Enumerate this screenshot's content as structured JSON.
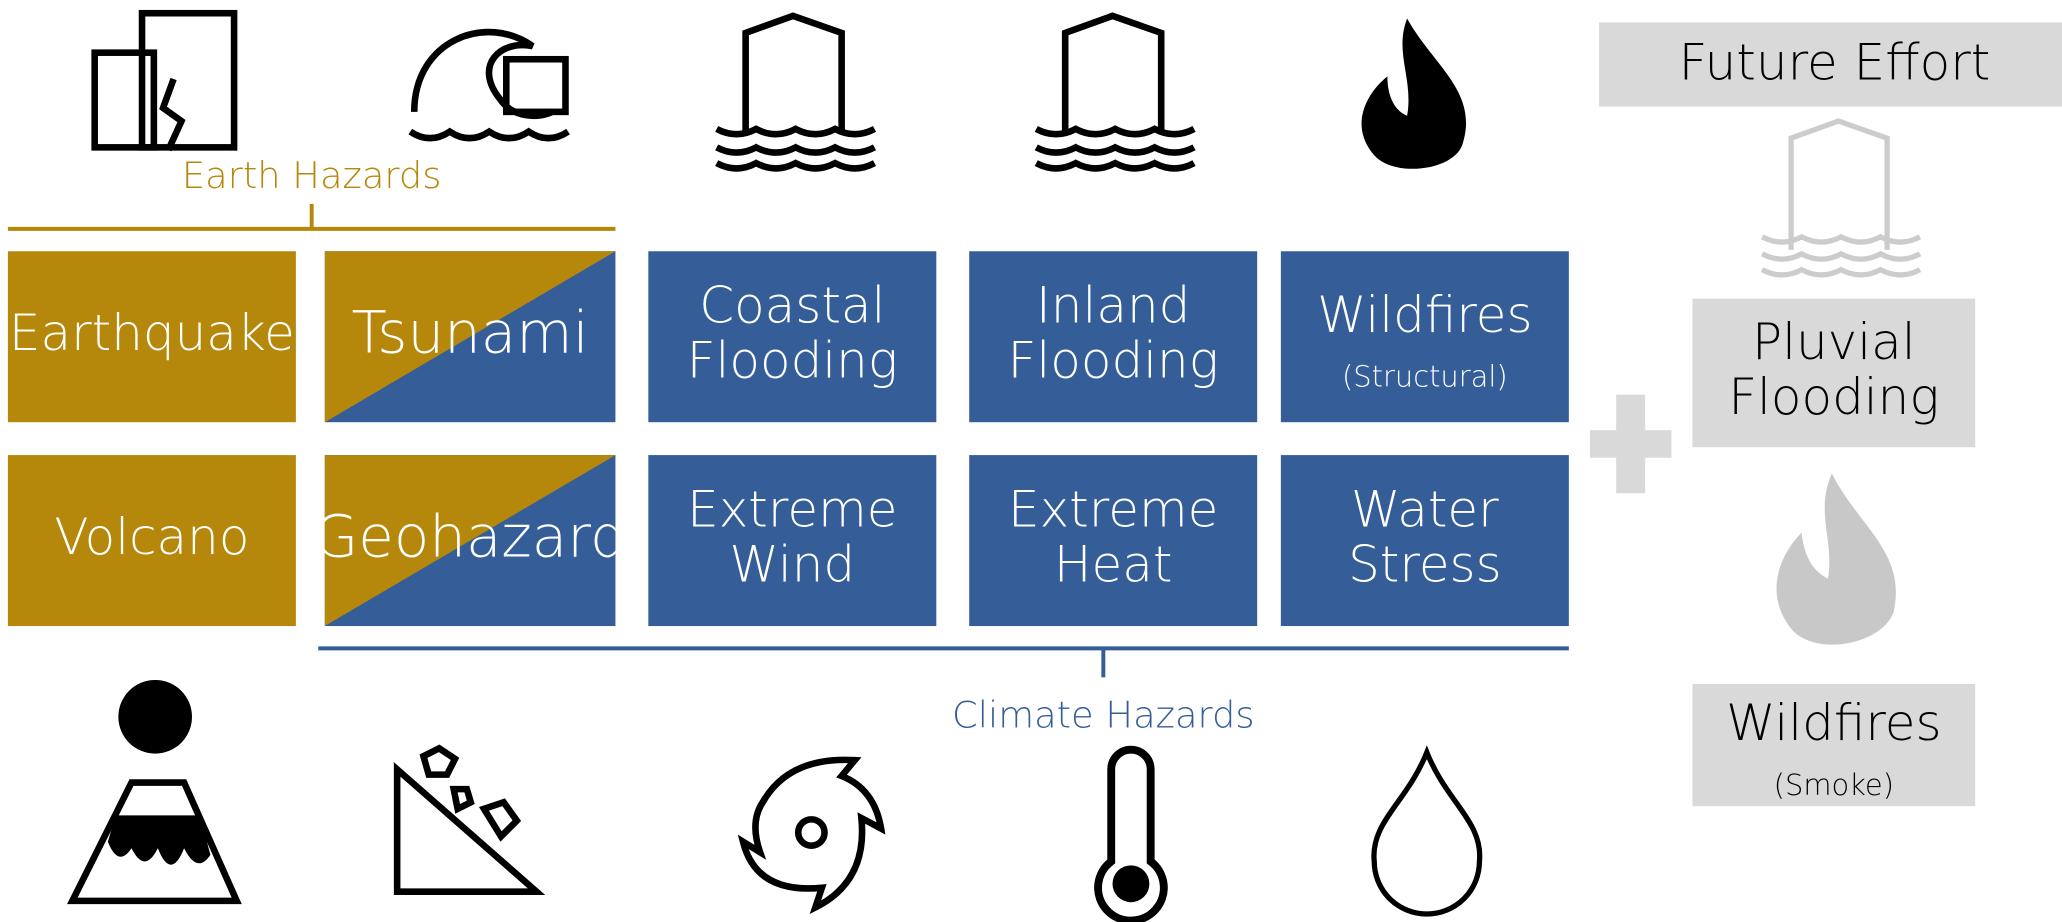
{
  "groups": {
    "earth": "Earth Hazards",
    "climate": "Climate Hazards"
  },
  "tiles": [
    {
      "lines": [
        "Earthquake"
      ]
    },
    {
      "lines": [
        "Tsunami"
      ]
    },
    {
      "lines": [
        "Coastal",
        "Flooding"
      ]
    },
    {
      "lines": [
        "Inland",
        "Flooding"
      ]
    },
    {
      "lines": [
        "Wildfires"
      ],
      "note": "(Structural)"
    },
    {
      "lines": [
        "Volcano"
      ]
    },
    {
      "lines": [
        "Geohazard"
      ]
    },
    {
      "lines": [
        "Extreme",
        "Wind"
      ]
    },
    {
      "lines": [
        "Extreme",
        "Heat"
      ]
    },
    {
      "lines": [
        "Water",
        "Stress"
      ]
    }
  ],
  "future": {
    "title": "Future Effort",
    "items": [
      {
        "lines": [
          "Pluvial",
          "Flooding"
        ]
      },
      {
        "lines": [
          "Wildfires"
        ],
        "note": "(Smoke)"
      }
    ]
  }
}
